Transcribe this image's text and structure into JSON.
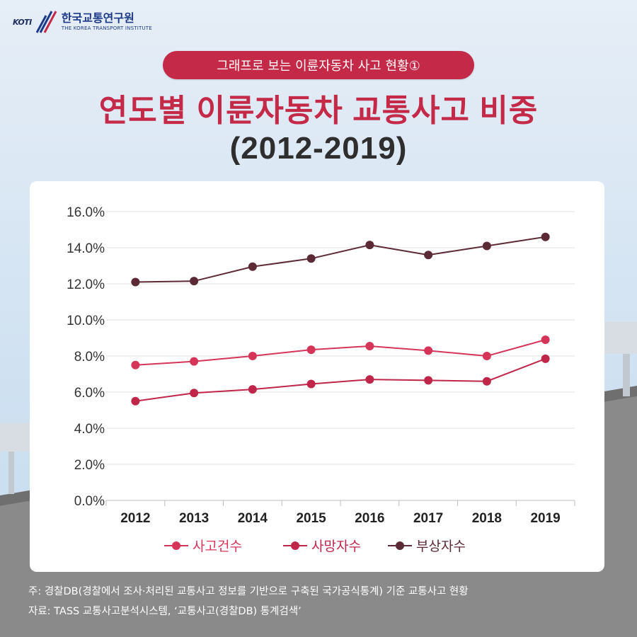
{
  "header": {
    "logo_mark": "KOTI",
    "logo_name_kr": "한국교통연구원",
    "logo_name_en": "THE KOREA TRANSPORT INSTITUTE"
  },
  "pill_label": "그래프로 보는 이륜자동차 사고 현황①",
  "title": "연도별 이륜자동차 교통사고 비중",
  "subtitle": "(2012-2019)",
  "colors": {
    "brand": "#c42a48",
    "series_accidents": "#d6355a",
    "series_deaths": "#c0264a",
    "series_injured": "#5c2a36"
  },
  "chart_data": {
    "type": "line",
    "x": [
      "2012",
      "2013",
      "2014",
      "2015",
      "2016",
      "2017",
      "2018",
      "2019"
    ],
    "y_ticks": [
      "0.0%",
      "2.0%",
      "4.0%",
      "6.0%",
      "8.0%",
      "10.0%",
      "12.0%",
      "14.0%",
      "16.0%"
    ],
    "ylim": [
      0,
      16
    ],
    "grid": true,
    "legend_position": "bottom",
    "series": [
      {
        "name": "사고건수",
        "values": [
          7.5,
          7.7,
          8.0,
          8.35,
          8.55,
          8.3,
          8.0,
          8.9
        ]
      },
      {
        "name": "사망자수",
        "values": [
          5.5,
          5.95,
          6.15,
          6.45,
          6.7,
          6.65,
          6.6,
          7.85
        ]
      },
      {
        "name": "부상자수",
        "values": [
          12.1,
          12.15,
          12.95,
          13.4,
          14.15,
          13.6,
          14.1,
          14.6
        ]
      }
    ]
  },
  "footnote": {
    "line1": "주: 경찰DB(경찰에서 조사·처리된 교통사고 정보를 기반으로 구축된 국가공식통계) 기준 교통사고 현황",
    "line2": "자료: TASS 교통사고분석시스템, ‘교통사고(경찰DB) 통계검색’"
  }
}
